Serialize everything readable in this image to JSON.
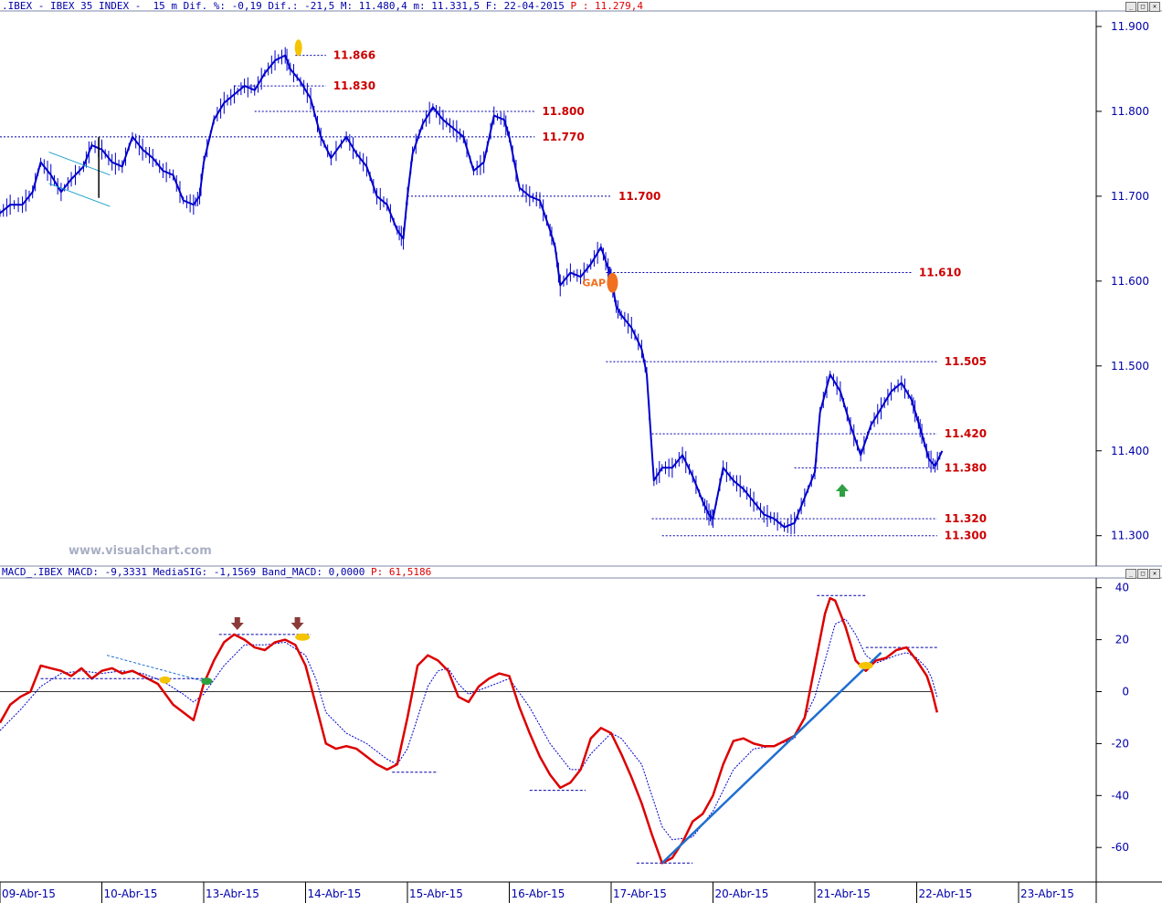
{
  "window_buttons": {
    "minimize": "_",
    "restore": "□",
    "close": "✕"
  },
  "price_header": {
    "prefix": ".IBEX - IBEX 35 INDEX -  15 m Dif. %: -0,19 Dif.: -21,5 M: 11.480,4 m: 11.331,5 F: 22-04-2015 ",
    "last_label": "P : 11.279,4"
  },
  "macd_header": {
    "prefix": "MACD_.IBEX MACD: -9,3331 MediaSIG: -1,1569 Band_MACD: 0,0000 ",
    "last_label": "P: 61,5186"
  },
  "watermark": "www.visualchart.com",
  "colors": {
    "price": "#0000cc",
    "level_line": "#0000aa",
    "level_label": "#cc0000",
    "macd": "#dd0000",
    "signal": "#0000cc",
    "trendline": "#1f6fd0",
    "gap": "#f07020",
    "arrow_up": "#2ea043",
    "arrow_down": "#8b3a3a",
    "marker_yellow": "#f5c400"
  },
  "chart_data": [
    {
      "type": "candlestick",
      "ylim": [
        11260,
        11910
      ],
      "yticks": [
        "11.900",
        "11.800",
        "11.700",
        "11.600",
        "11.500",
        "11.400",
        "11.300"
      ],
      "ytick_values": [
        11900,
        11800,
        11700,
        11600,
        11500,
        11400,
        11300
      ],
      "xticks": [
        "09-Abr-15",
        "10-Abr-15",
        "13-Abr-15",
        "14-Abr-15",
        "15-Abr-15",
        "16-Abr-15",
        "17-Abr-15",
        "20-Abr-15",
        "21-Abr-15",
        "22-Abr-15",
        "23-Abr-15"
      ],
      "price_path": [
        [
          0,
          11680
        ],
        [
          0.1,
          11690
        ],
        [
          0.22,
          11690
        ],
        [
          0.32,
          11705
        ],
        [
          0.4,
          11740
        ],
        [
          0.5,
          11725
        ],
        [
          0.6,
          11705
        ],
        [
          0.7,
          11720
        ],
        [
          0.82,
          11735
        ],
        [
          0.9,
          11760
        ],
        [
          1.0,
          11755
        ],
        [
          1.1,
          11740
        ],
        [
          1.2,
          11735
        ],
        [
          1.3,
          11770
        ],
        [
          1.4,
          11755
        ],
        [
          1.5,
          11745
        ],
        [
          1.6,
          11730
        ],
        [
          1.7,
          11725
        ],
        [
          1.8,
          11695
        ],
        [
          1.9,
          11690
        ],
        [
          1.96,
          11700
        ],
        [
          2.0,
          11740
        ],
        [
          2.1,
          11790
        ],
        [
          2.2,
          11810
        ],
        [
          2.3,
          11820
        ],
        [
          2.4,
          11830
        ],
        [
          2.5,
          11825
        ],
        [
          2.6,
          11845
        ],
        [
          2.7,
          11860
        ],
        [
          2.8,
          11866
        ],
        [
          2.85,
          11850
        ],
        [
          2.95,
          11835
        ],
        [
          3.05,
          11815
        ],
        [
          3.15,
          11770
        ],
        [
          3.25,
          11745
        ],
        [
          3.4,
          11770
        ],
        [
          3.5,
          11750
        ],
        [
          3.6,
          11735
        ],
        [
          3.7,
          11700
        ],
        [
          3.8,
          11690
        ],
        [
          3.9,
          11660
        ],
        [
          3.96,
          11650
        ],
        [
          4.0,
          11700
        ],
        [
          4.05,
          11750
        ],
        [
          4.15,
          11785
        ],
        [
          4.25,
          11805
        ],
        [
          4.35,
          11790
        ],
        [
          4.45,
          11780
        ],
        [
          4.55,
          11770
        ],
        [
          4.65,
          11730
        ],
        [
          4.75,
          11740
        ],
        [
          4.85,
          11795
        ],
        [
          4.95,
          11790
        ],
        [
          5.0,
          11770
        ],
        [
          5.1,
          11710
        ],
        [
          5.2,
          11700
        ],
        [
          5.3,
          11695
        ],
        [
          5.4,
          11660
        ],
        [
          5.45,
          11640
        ],
        [
          5.5,
          11595
        ],
        [
          5.6,
          11610
        ],
        [
          5.7,
          11605
        ],
        [
          5.8,
          11620
        ],
        [
          5.9,
          11640
        ],
        [
          5.97,
          11615
        ],
        [
          6.0,
          11605
        ],
        [
          6.05,
          11570
        ],
        [
          6.1,
          11560
        ],
        [
          6.2,
          11545
        ],
        [
          6.3,
          11520
        ],
        [
          6.35,
          11490
        ],
        [
          6.42,
          11365
        ],
        [
          6.5,
          11380
        ],
        [
          6.6,
          11380
        ],
        [
          6.7,
          11395
        ],
        [
          6.8,
          11370
        ],
        [
          6.9,
          11340
        ],
        [
          6.96,
          11325
        ],
        [
          7.0,
          11320
        ],
        [
          7.1,
          11380
        ],
        [
          7.2,
          11365
        ],
        [
          7.3,
          11355
        ],
        [
          7.4,
          11340
        ],
        [
          7.5,
          11325
        ],
        [
          7.6,
          11320
        ],
        [
          7.7,
          11310
        ],
        [
          7.8,
          11315
        ],
        [
          7.9,
          11345
        ],
        [
          8.0,
          11375
        ],
        [
          8.05,
          11445
        ],
        [
          8.15,
          11490
        ],
        [
          8.25,
          11470
        ],
        [
          8.35,
          11430
        ],
        [
          8.45,
          11395
        ],
        [
          8.55,
          11430
        ],
        [
          8.65,
          11450
        ],
        [
          8.75,
          11470
        ],
        [
          8.85,
          11480
        ],
        [
          8.95,
          11460
        ],
        [
          9.0,
          11440
        ],
        [
          9.05,
          11420
        ],
        [
          9.12,
          11390
        ],
        [
          9.18,
          11382
        ],
        [
          9.25,
          11400
        ]
      ],
      "levels": [
        {
          "value": 11866,
          "label": "11.866",
          "x_from": 2.9,
          "x_to": 3.2
        },
        {
          "value": 11830,
          "label": "11.830",
          "x_from": 2.3,
          "x_to": 3.2
        },
        {
          "value": 11800,
          "label": "11.800",
          "x_from": 2.5,
          "x_to": 5.25
        },
        {
          "value": 11770,
          "label": "11.770",
          "x_from": 0,
          "x_to": 5.25
        },
        {
          "value": 11700,
          "label": "11.700",
          "x_from": 4.0,
          "x_to": 6.0
        },
        {
          "value": 11610,
          "label": "11.610",
          "x_from": 5.95,
          "x_to": 8.95
        },
        {
          "value": 11505,
          "label": "11.505",
          "x_from": 5.95,
          "x_to": 9.2
        },
        {
          "value": 11420,
          "label": "11.420",
          "x_from": 6.4,
          "x_to": 9.2
        },
        {
          "value": 11380,
          "label": "11.380",
          "x_from": 7.8,
          "x_to": 9.2
        },
        {
          "value": 11320,
          "label": "11.320",
          "x_from": 6.4,
          "x_to": 9.2
        },
        {
          "value": 11300,
          "label": "11.300",
          "x_from": 6.5,
          "x_to": 9.2
        }
      ],
      "annotations": [
        {
          "type": "text",
          "text": "GAP",
          "x": 5.95,
          "y": 11598
        }
      ]
    },
    {
      "type": "line",
      "ylim": [
        -72,
        44
      ],
      "yticks": [
        "40",
        "20",
        "0",
        "-20",
        "-40",
        "-60"
      ],
      "ytick_values": [
        40,
        20,
        0,
        -20,
        -40,
        -60
      ],
      "series": [
        {
          "role": "macd",
          "values": [
            [
              0,
              -12
            ],
            [
              0.1,
              -5
            ],
            [
              0.2,
              -2
            ],
            [
              0.3,
              0
            ],
            [
              0.4,
              10
            ],
            [
              0.5,
              9
            ],
            [
              0.6,
              8
            ],
            [
              0.7,
              6
            ],
            [
              0.8,
              9
            ],
            [
              0.9,
              5
            ],
            [
              1.0,
              8
            ],
            [
              1.1,
              9
            ],
            [
              1.2,
              7
            ],
            [
              1.3,
              8
            ],
            [
              1.4,
              6
            ],
            [
              1.55,
              3
            ],
            [
              1.7,
              -5
            ],
            [
              1.8,
              -8
            ],
            [
              1.9,
              -11
            ],
            [
              2.0,
              3
            ],
            [
              2.1,
              12
            ],
            [
              2.2,
              19
            ],
            [
              2.3,
              22
            ],
            [
              2.4,
              20
            ],
            [
              2.5,
              17
            ],
            [
              2.6,
              16
            ],
            [
              2.7,
              19
            ],
            [
              2.8,
              20
            ],
            [
              2.9,
              18
            ],
            [
              3.0,
              10
            ],
            [
              3.1,
              -5
            ],
            [
              3.2,
              -20
            ],
            [
              3.3,
              -22
            ],
            [
              3.4,
              -21
            ],
            [
              3.5,
              -22
            ],
            [
              3.6,
              -25
            ],
            [
              3.7,
              -28
            ],
            [
              3.8,
              -30
            ],
            [
              3.9,
              -28
            ],
            [
              4.0,
              -10
            ],
            [
              4.1,
              10
            ],
            [
              4.2,
              14
            ],
            [
              4.3,
              12
            ],
            [
              4.4,
              8
            ],
            [
              4.5,
              -2
            ],
            [
              4.6,
              -4
            ],
            [
              4.7,
              2
            ],
            [
              4.8,
              5
            ],
            [
              4.9,
              7
            ],
            [
              5.0,
              6
            ],
            [
              5.1,
              -6
            ],
            [
              5.2,
              -16
            ],
            [
              5.3,
              -25
            ],
            [
              5.4,
              -32
            ],
            [
              5.5,
              -37
            ],
            [
              5.6,
              -35
            ],
            [
              5.7,
              -30
            ],
            [
              5.8,
              -18
            ],
            [
              5.9,
              -14
            ],
            [
              6.0,
              -16
            ],
            [
              6.1,
              -24
            ],
            [
              6.2,
              -33
            ],
            [
              6.3,
              -43
            ],
            [
              6.4,
              -55
            ],
            [
              6.5,
              -66
            ],
            [
              6.6,
              -64
            ],
            [
              6.7,
              -58
            ],
            [
              6.8,
              -50
            ],
            [
              6.9,
              -47
            ],
            [
              7.0,
              -40
            ],
            [
              7.1,
              -28
            ],
            [
              7.2,
              -19
            ],
            [
              7.3,
              -18
            ],
            [
              7.4,
              -20
            ],
            [
              7.5,
              -21
            ],
            [
              7.6,
              -21
            ],
            [
              7.7,
              -19
            ],
            [
              7.8,
              -17
            ],
            [
              7.9,
              -10
            ],
            [
              8.0,
              10
            ],
            [
              8.1,
              30
            ],
            [
              8.15,
              36
            ],
            [
              8.2,
              35
            ],
            [
              8.3,
              25
            ],
            [
              8.4,
              12
            ],
            [
              8.5,
              8
            ],
            [
              8.6,
              12
            ],
            [
              8.7,
              13
            ],
            [
              8.8,
              16
            ],
            [
              8.9,
              17
            ],
            [
              9.0,
              12
            ],
            [
              9.1,
              6
            ],
            [
              9.15,
              0
            ],
            [
              9.2,
              -8
            ]
          ]
        },
        {
          "role": "signal",
          "values": [
            [
              0,
              -15
            ],
            [
              0.2,
              -7
            ],
            [
              0.4,
              2
            ],
            [
              0.6,
              7
            ],
            [
              0.8,
              8
            ],
            [
              1.0,
              7
            ],
            [
              1.2,
              8
            ],
            [
              1.4,
              7
            ],
            [
              1.6,
              4
            ],
            [
              1.8,
              -1
            ],
            [
              1.9,
              -4
            ],
            [
              2.0,
              -1
            ],
            [
              2.2,
              10
            ],
            [
              2.4,
              18
            ],
            [
              2.6,
              18
            ],
            [
              2.8,
              19
            ],
            [
              3.0,
              14
            ],
            [
              3.1,
              5
            ],
            [
              3.2,
              -8
            ],
            [
              3.4,
              -16
            ],
            [
              3.6,
              -20
            ],
            [
              3.8,
              -26
            ],
            [
              3.9,
              -28
            ],
            [
              4.0,
              -22
            ],
            [
              4.2,
              2
            ],
            [
              4.3,
              8
            ],
            [
              4.4,
              9
            ],
            [
              4.5,
              3
            ],
            [
              4.6,
              -1
            ],
            [
              4.8,
              2
            ],
            [
              5.0,
              5
            ],
            [
              5.2,
              -6
            ],
            [
              5.4,
              -20
            ],
            [
              5.6,
              -30
            ],
            [
              5.7,
              -30
            ],
            [
              5.8,
              -24
            ],
            [
              6.0,
              -16
            ],
            [
              6.1,
              -18
            ],
            [
              6.3,
              -28
            ],
            [
              6.4,
              -40
            ],
            [
              6.5,
              -52
            ],
            [
              6.6,
              -57
            ],
            [
              6.8,
              -56
            ],
            [
              7.0,
              -46
            ],
            [
              7.2,
              -30
            ],
            [
              7.4,
              -22
            ],
            [
              7.6,
              -21
            ],
            [
              7.8,
              -18
            ],
            [
              8.0,
              -2
            ],
            [
              8.1,
              12
            ],
            [
              8.2,
              26
            ],
            [
              8.3,
              28
            ],
            [
              8.4,
              22
            ],
            [
              8.5,
              14
            ],
            [
              8.6,
              11
            ],
            [
              8.8,
              14
            ],
            [
              8.9,
              15
            ],
            [
              9.0,
              13
            ],
            [
              9.1,
              9
            ],
            [
              9.15,
              5
            ],
            [
              9.2,
              -2
            ]
          ]
        }
      ],
      "levels": [
        {
          "value": -31,
          "x_from": 3.85,
          "x_to": 4.3
        },
        {
          "value": -38,
          "x_from": 5.2,
          "x_to": 5.75
        },
        {
          "value": -66,
          "x_from": 6.25,
          "x_to": 6.8
        },
        {
          "value": 37,
          "x_from": 8.02,
          "x_to": 8.5
        },
        {
          "value": 22,
          "x_from": 2.15,
          "x_to": 3.05
        },
        {
          "value": 17,
          "x_from": 8.5,
          "x_to": 9.2
        }
      ]
    }
  ]
}
